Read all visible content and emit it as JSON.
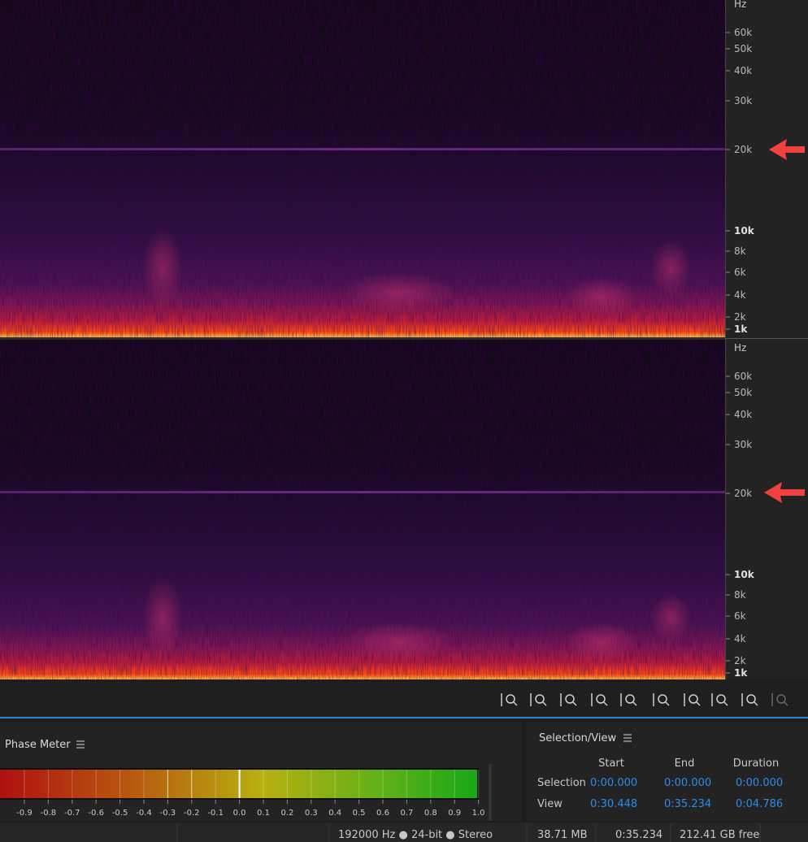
{
  "spectral": {
    "channels": [
      {
        "unit": "Hz",
        "freq_labels": [
          "60k",
          "50k",
          "40k",
          "30k",
          "20k",
          "10k",
          "8k",
          "6k",
          "4k",
          "2k",
          "1k"
        ]
      },
      {
        "unit": "Hz",
        "freq_labels": [
          "60k",
          "50k",
          "40k",
          "30k",
          "20k",
          "10k",
          "8k",
          "6k",
          "4k",
          "2k",
          "1k"
        ]
      }
    ]
  },
  "phase_meter": {
    "title": "Phase Meter",
    "scale": [
      "-0.9",
      "-0.8",
      "-0.7",
      "-0.6",
      "-0.5",
      "-0.4",
      "-0.3",
      "-0.2",
      "-0.1",
      "0.0",
      "0.1",
      "0.2",
      "0.3",
      "0.4",
      "0.5",
      "0.6",
      "0.7",
      "0.8",
      "0.9",
      "1.0"
    ]
  },
  "selection_view": {
    "title": "Selection/View",
    "columns": [
      "Start",
      "End",
      "Duration"
    ],
    "rows": [
      {
        "label": "Selection",
        "values": [
          "0:00.000",
          "0:00.000",
          "0:00.000"
        ]
      },
      {
        "label": "View",
        "values": [
          "0:30.448",
          "0:35.234",
          "0:04.786"
        ]
      }
    ]
  },
  "status_bar": {
    "format": "192000 Hz ● 24-bit ● Stereo",
    "size": "38.71 MB",
    "duration": "0:35.234",
    "free": "212.41 GB free"
  }
}
